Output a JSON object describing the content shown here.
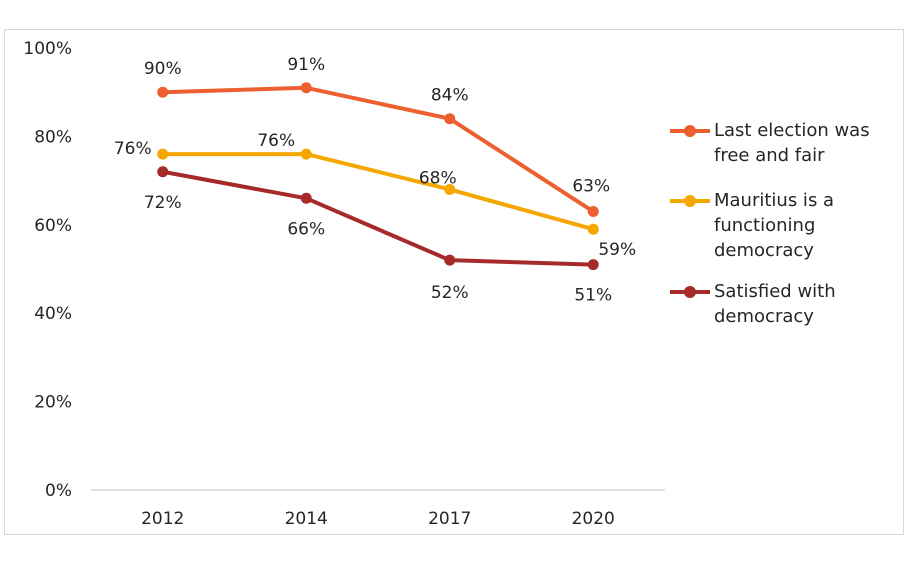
{
  "chart_data": {
    "type": "line",
    "categories": [
      "2012",
      "2014",
      "2017",
      "2020"
    ],
    "ylim": [
      0,
      100
    ],
    "yticks": [
      "0%",
      "20%",
      "40%",
      "60%",
      "80%",
      "100%"
    ],
    "grid": false,
    "legend_position": "right",
    "series": [
      {
        "name": "Last election was free and fair",
        "legend_lines": [
          "Last election was",
          "free and fair"
        ],
        "color": "#ed5f2f",
        "values": [
          90,
          91,
          84,
          63
        ],
        "labels": [
          "90%",
          "91%",
          "84%",
          "63%"
        ]
      },
      {
        "name": "Mauritius is a functioning democracy",
        "legend_lines": [
          "Mauritius is a",
          "functioning",
          "democracy"
        ],
        "color": "#f5a700",
        "values": [
          76,
          76,
          68,
          59
        ],
        "labels": [
          "76%",
          "76%",
          "68%",
          "59%"
        ]
      },
      {
        "name": "Satisfied with democracy",
        "legend_lines": [
          "Satisfied with",
          "democracy"
        ],
        "color": "#a62a2a",
        "values": [
          72,
          66,
          52,
          51
        ],
        "labels": [
          "72%",
          "66%",
          "52%",
          "51%"
        ]
      }
    ]
  }
}
